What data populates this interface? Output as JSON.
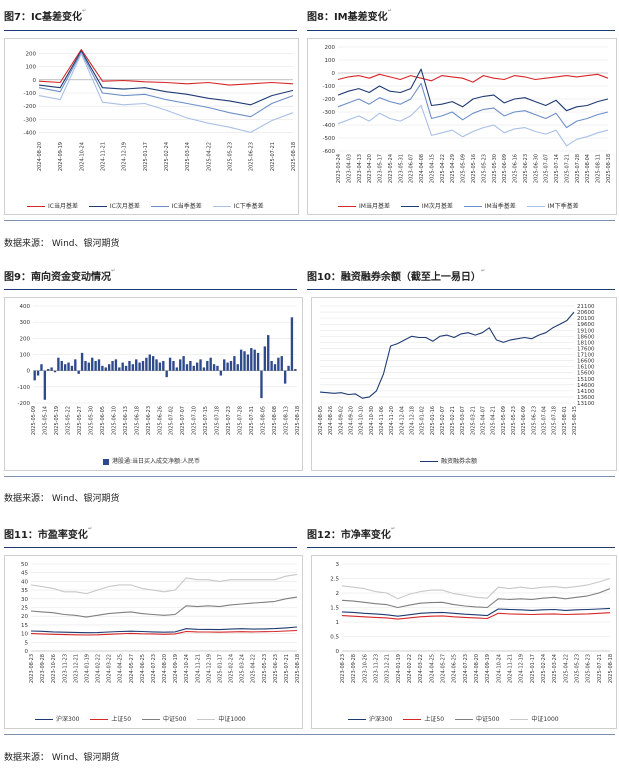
{
  "figures": [
    {
      "title": "图7：IC基差变化",
      "legend": [
        "IC当月基差",
        "IC次月基差",
        "IC当季基差",
        "IC下季基差"
      ]
    },
    {
      "title": "图8：IM基差变化",
      "legend": [
        "IM当月基差",
        "IM次月基差",
        "IM当季基差",
        "IM下季基差"
      ]
    },
    {
      "title": "图9：南向资金变动情况",
      "legend": [
        "港股通:当日买入成交净额:人民币"
      ]
    },
    {
      "title": "图10：融资融券余额（截至上一易日）",
      "legend": [
        "融资融券余额"
      ]
    },
    {
      "title": "图11：市盈率变化",
      "legend": [
        "沪深300",
        "上证50",
        "中证500",
        "中证1000"
      ]
    },
    {
      "title": "图12：市净率变化",
      "legend": [
        "沪深300",
        "上证50",
        "中证500",
        "中证1000"
      ]
    }
  ],
  "sources": [
    "数据来源：  Wind、银河期货",
    "数据来源：  Wind、银河期货",
    "数据来源：  Wind、银河期货"
  ],
  "title_mark": "↵",
  "chart_data": [
    {
      "type": "line",
      "x_ticks": [
        "2024-08-20",
        "2024-09-19",
        "2024-10-24",
        "2024-11-21",
        "2024-12-19",
        "2025-01-17",
        "2025-02-24",
        "2025-03-24",
        "2025-04-22",
        "2025-05-23",
        "2025-06-23",
        "2025-07-21",
        "2025-08-18"
      ],
      "y_ticks": [
        200,
        100,
        0,
        -100,
        -200,
        -300,
        -400
      ],
      "ylim": [
        -450,
        250
      ],
      "series": [
        {
          "name": "IC当月基差",
          "color": "#d62728",
          "values": [
            -10,
            -20,
            230,
            -10,
            -5,
            -15,
            -20,
            -30,
            -20,
            -40,
            -30,
            -20,
            -30
          ]
        },
        {
          "name": "IC次月基差",
          "color": "#1f3b73",
          "values": [
            -40,
            -60,
            220,
            -60,
            -70,
            -60,
            -90,
            -110,
            -140,
            -160,
            -190,
            -120,
            -80
          ]
        },
        {
          "name": "IC当季基差",
          "color": "#6d8fc7",
          "values": [
            -60,
            -90,
            210,
            -100,
            -120,
            -110,
            -150,
            -180,
            -210,
            -250,
            -280,
            -180,
            -120
          ]
        },
        {
          "name": "IC下季基差",
          "color": "#a9c0e6",
          "values": [
            -120,
            -150,
            200,
            -170,
            -190,
            -180,
            -230,
            -290,
            -330,
            -360,
            -400,
            -310,
            -250
          ]
        }
      ]
    },
    {
      "type": "line",
      "x_ticks": [
        "2023-03-24",
        "2023-04-03",
        "2023-04-13",
        "2023-04-20",
        "2023-05-17",
        "2023-05-24",
        "2023-05-31",
        "2023-06-07",
        "2024-04-08",
        "2025-04-15",
        "2025-04-22",
        "2025-04-29",
        "2025-05-09",
        "2025-05-16",
        "2025-05-23",
        "2025-05-30",
        "2025-06-09",
        "2025-06-16",
        "2025-06-23",
        "2025-06-30",
        "2025-07-07",
        "2025-07-14",
        "2025-07-21",
        "2025-07-28",
        "2025-08-04",
        "2025-08-11",
        "2025-08-18"
      ],
      "y_ticks": [
        200,
        100,
        0,
        -100,
        -200,
        -300,
        -400,
        -500,
        -600
      ],
      "ylim": [
        -600,
        200
      ],
      "series": [
        {
          "name": "IM当月基差",
          "color": "#d62728",
          "values": [
            -50,
            -30,
            -20,
            -40,
            -10,
            -30,
            -50,
            -20,
            -40,
            -60,
            -20,
            -30,
            -40,
            -70,
            -20,
            -40,
            -50,
            -20,
            -30,
            -50,
            -40,
            -30,
            -20,
            -30,
            -20,
            -10,
            -40
          ]
        },
        {
          "name": "IM次月基差",
          "color": "#1f3b73",
          "values": [
            -170,
            -140,
            -120,
            -150,
            -100,
            -140,
            -150,
            -120,
            30,
            -250,
            -240,
            -220,
            -260,
            -200,
            -180,
            -170,
            -230,
            -200,
            -190,
            -220,
            -250,
            -210,
            -290,
            -260,
            -250,
            -220,
            -200
          ]
        },
        {
          "name": "IM当季基差",
          "color": "#6d8fc7",
          "values": [
            -260,
            -230,
            -200,
            -240,
            -190,
            -220,
            -240,
            -200,
            -80,
            -350,
            -330,
            -300,
            -360,
            -310,
            -280,
            -270,
            -330,
            -300,
            -290,
            -320,
            -350,
            -310,
            -420,
            -370,
            -350,
            -320,
            -300
          ]
        },
        {
          "name": "IM下季基差",
          "color": "#a9c0e6",
          "values": [
            -390,
            -360,
            -330,
            -370,
            -310,
            -350,
            -370,
            -330,
            -250,
            -480,
            -460,
            -440,
            -490,
            -450,
            -420,
            -400,
            -460,
            -430,
            -420,
            -450,
            -470,
            -440,
            -560,
            -510,
            -490,
            -460,
            -440
          ]
        }
      ]
    },
    {
      "type": "bar",
      "x_ticks": [
        "2025-05-09",
        "2025-05-14",
        "2025-05-19",
        "2025-05-22",
        "2025-05-27",
        "2025-05-30",
        "2025-06-05",
        "2025-06-10",
        "2025-06-13",
        "2025-06-18",
        "2025-06-23",
        "2025-06-26",
        "2025-07-02",
        "2025-07-07",
        "2025-07-10",
        "2025-07-15",
        "2025-07-18",
        "2025-07-23",
        "2025-07-28",
        "2025-07-31",
        "2025-08-05",
        "2025-08-08",
        "2025-08-13",
        "2025-08-18"
      ],
      "y_ticks": [
        400,
        300,
        200,
        100,
        0,
        -100,
        -200
      ],
      "ylim": [
        -200,
        400
      ],
      "series": [
        {
          "name": "港股通:当日买入成交净额:人民币",
          "color": "#2e4a8b",
          "values": [
            -60,
            -30,
            40,
            -180,
            10,
            20,
            -10,
            80,
            60,
            40,
            50,
            30,
            70,
            -20,
            110,
            60,
            50,
            80,
            60,
            70,
            30,
            20,
            40,
            60,
            70,
            20,
            50,
            30,
            60,
            40,
            70,
            50,
            60,
            80,
            100,
            90,
            70,
            50,
            60,
            -40,
            80,
            60,
            20,
            70,
            90,
            40,
            60,
            30,
            50,
            70,
            20,
            60,
            80,
            40,
            30,
            -30,
            70,
            50,
            60,
            90,
            40,
            130,
            120,
            100,
            140,
            130,
            110,
            -170,
            150,
            220,
            60,
            40,
            80,
            90,
            -80,
            30,
            330,
            10
          ]
        }
      ]
    },
    {
      "type": "line",
      "x_ticks": [
        "2024-08-05",
        "2024-08-26",
        "2024-09-02",
        "2024-09-20",
        "2024-10-10",
        "2024-10-30",
        "2024-11-06",
        "2024-11-20",
        "2024-12-04",
        "2024-12-18",
        "2025-01-02",
        "2025-01-16",
        "2025-02-07",
        "2025-02-21",
        "2025-03-07",
        "2025-03-21",
        "2025-04-07",
        "2025-04-21",
        "2025-05-09",
        "2025-05-23",
        "2025-06-09",
        "2025-06-23",
        "2025-07-04",
        "2025-07-18",
        "2025-08-01",
        "2025-08-15"
      ],
      "y_ticks": [
        21100,
        20600,
        20100,
        19600,
        19100,
        18600,
        18100,
        17600,
        17100,
        16600,
        16100,
        15600,
        15100,
        14600,
        14100,
        13600,
        13100
      ],
      "ylim": [
        13100,
        21100
      ],
      "series": [
        {
          "name": "融资融券余额",
          "color": "#1f3b73",
          "values": [
            14000,
            13950,
            13900,
            13950,
            13800,
            13850,
            13500,
            13600,
            14100,
            15500,
            17800,
            18000,
            18300,
            18600,
            18500,
            18500,
            18200,
            18600,
            18700,
            18500,
            18800,
            18900,
            18700,
            18900,
            19300,
            18300,
            18100,
            18300,
            18400,
            18500,
            18400,
            18700,
            18900,
            19300,
            19600,
            19900,
            20600
          ]
        }
      ]
    },
    {
      "type": "line",
      "x_ticks": [
        "2023-08-23",
        "2023-09-28",
        "2023-10-26",
        "2023-11-23",
        "2023-12-21",
        "2024-01-19",
        "2024-02-22",
        "2024-03-22",
        "2024-04-25",
        "2024-05-27",
        "2024-06-25",
        "2024-07-23",
        "2024-08-20",
        "2024-09-19",
        "2024-10-24",
        "2024-11-21",
        "2024-12-19",
        "2025-01-17",
        "2025-02-24",
        "2025-03-24",
        "2025-04-22",
        "2025-05-23",
        "2025-06-23",
        "2025-07-21",
        "2025-08-18"
      ],
      "y_ticks": [
        50,
        45,
        40,
        35,
        30,
        25,
        20,
        15,
        10,
        5,
        0
      ],
      "ylim": [
        0,
        50
      ],
      "series": [
        {
          "name": "沪深300",
          "color": "#1f3b73",
          "values": [
            11.5,
            11.3,
            11.0,
            10.8,
            10.7,
            10.5,
            10.6,
            10.9,
            11.2,
            11.4,
            11.2,
            11.0,
            10.8,
            11.0,
            12.8,
            12.5,
            12.4,
            12.3,
            12.6,
            12.8,
            12.6,
            12.7,
            12.9,
            13.3,
            13.8
          ]
        },
        {
          "name": "上证50",
          "color": "#d62728",
          "values": [
            10.0,
            9.8,
            9.6,
            9.4,
            9.3,
            9.2,
            9.3,
            9.6,
            9.9,
            10.1,
            9.9,
            9.8,
            9.6,
            9.8,
            11.2,
            11.0,
            10.9,
            10.8,
            11.0,
            11.1,
            11.0,
            11.1,
            11.2,
            11.5,
            11.8
          ]
        },
        {
          "name": "中证500",
          "color": "#7f7f7f",
          "values": [
            23,
            22.5,
            22,
            21,
            20.5,
            19.5,
            20.5,
            21.5,
            22,
            22.5,
            21.5,
            21,
            20.5,
            21,
            26,
            25.5,
            26,
            25.5,
            26.5,
            27,
            27.5,
            28,
            28.5,
            30,
            31
          ]
        },
        {
          "name": "中证1000",
          "color": "#c8c8c8",
          "values": [
            38,
            37,
            36,
            34,
            34,
            33,
            35,
            37,
            38,
            38,
            36,
            35,
            34,
            35,
            42,
            41,
            41,
            40,
            41,
            41,
            41,
            41,
            41,
            43,
            44
          ]
        }
      ]
    },
    {
      "type": "line",
      "x_ticks": [
        "2023-08-23",
        "2023-09-28",
        "2023-10-26",
        "2023-11-23",
        "2023-12-21",
        "2024-01-19",
        "2024-02-22",
        "2024-03-22",
        "2024-04-25",
        "2024-05-27",
        "2024-06-25",
        "2024-07-23",
        "2024-08-20",
        "2024-09-19",
        "2024-10-24",
        "2024-11-21",
        "2024-12-19",
        "2025-01-17",
        "2025-02-24",
        "2025-03-24",
        "2025-04-22",
        "2025-05-23",
        "2025-06-23",
        "2025-07-21",
        "2025-08-18"
      ],
      "y_ticks": [
        3.0,
        2.5,
        2.0,
        1.5,
        1.0,
        0.5,
        0.0
      ],
      "ylim": [
        0,
        3.0
      ],
      "series": [
        {
          "name": "沪深300",
          "color": "#1f3b73",
          "values": [
            1.35,
            1.33,
            1.3,
            1.28,
            1.25,
            1.2,
            1.25,
            1.3,
            1.32,
            1.33,
            1.3,
            1.27,
            1.25,
            1.22,
            1.45,
            1.43,
            1.42,
            1.4,
            1.42,
            1.43,
            1.4,
            1.42,
            1.43,
            1.45,
            1.47
          ]
        },
        {
          "name": "上证50",
          "color": "#d62728",
          "values": [
            1.22,
            1.2,
            1.18,
            1.16,
            1.14,
            1.1,
            1.14,
            1.18,
            1.2,
            1.21,
            1.18,
            1.16,
            1.14,
            1.12,
            1.3,
            1.28,
            1.27,
            1.26,
            1.27,
            1.28,
            1.26,
            1.27,
            1.28,
            1.3,
            1.32
          ]
        },
        {
          "name": "中证500",
          "color": "#7f7f7f",
          "values": [
            1.75,
            1.72,
            1.68,
            1.63,
            1.6,
            1.5,
            1.58,
            1.65,
            1.67,
            1.68,
            1.6,
            1.55,
            1.52,
            1.5,
            1.8,
            1.78,
            1.8,
            1.78,
            1.82,
            1.85,
            1.8,
            1.85,
            1.9,
            2.0,
            2.15
          ]
        },
        {
          "name": "中证1000",
          "color": "#c8c8c8",
          "values": [
            2.25,
            2.2,
            2.15,
            2.05,
            2.0,
            1.8,
            1.95,
            2.05,
            2.1,
            2.1,
            1.98,
            1.92,
            1.85,
            1.82,
            2.2,
            2.15,
            2.2,
            2.15,
            2.2,
            2.22,
            2.18,
            2.22,
            2.28,
            2.38,
            2.5
          ]
        }
      ]
    }
  ]
}
